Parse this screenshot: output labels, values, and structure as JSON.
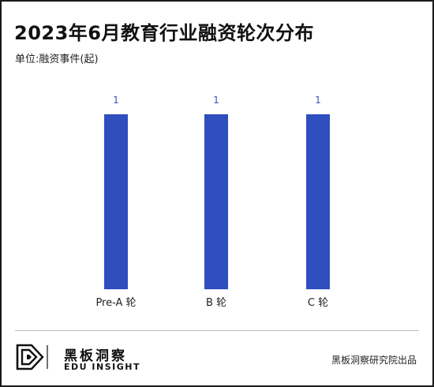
{
  "header": {
    "title": "2023年6月教育行业融资轮次分布",
    "unit": "单位:融资事件(起)"
  },
  "chart_data": {
    "type": "bar",
    "categories": [
      "Pre-A 轮",
      "B 轮",
      "C 轮"
    ],
    "values": [
      1,
      1,
      1
    ],
    "ylim": [
      0,
      1
    ],
    "color": "#2f4fbf",
    "grid": false,
    "data_labels": true
  },
  "footer": {
    "brand_cn": "黑板洞察",
    "brand_en": "EDU INSIGHT",
    "source": "黑板洞察研究院出品"
  }
}
